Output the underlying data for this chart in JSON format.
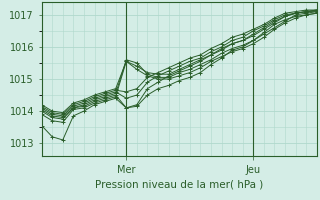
{
  "title": "Pression niveau de la mer( hPa )",
  "ylabel_ticks": [
    1013,
    1014,
    1015,
    1016,
    1017
  ],
  "ylim": [
    1012.6,
    1017.4
  ],
  "xlim": [
    0,
    52
  ],
  "x_day_labels": [
    [
      "Mer",
      16
    ],
    [
      "Jeu",
      40
    ]
  ],
  "background_color": "#d4ede6",
  "grid_color": "#b0d8cc",
  "line_color": "#2a5e2a",
  "marker_color": "#2a5e2a",
  "series": [
    [
      0,
      1013.55,
      2,
      1013.2,
      4,
      1013.1,
      6,
      1013.85,
      8,
      1014.0,
      10,
      1014.2,
      12,
      1014.3,
      14,
      1014.4,
      16,
      1014.1,
      18,
      1014.15,
      20,
      1014.5,
      22,
      1014.7,
      24,
      1014.8,
      26,
      1014.95,
      28,
      1015.05,
      30,
      1015.2,
      32,
      1015.45,
      34,
      1015.65,
      36,
      1015.9,
      38,
      1016.0,
      40,
      1016.2,
      42,
      1016.45,
      44,
      1016.7,
      46,
      1016.85,
      48,
      1016.95,
      50,
      1017.0,
      52,
      1017.05
    ],
    [
      0,
      1013.9,
      2,
      1013.7,
      4,
      1013.65,
      6,
      1014.05,
      8,
      1014.1,
      10,
      1014.25,
      12,
      1014.35,
      14,
      1014.45,
      16,
      1015.55,
      18,
      1015.3,
      20,
      1015.1,
      22,
      1015.0,
      24,
      1015.0,
      26,
      1015.1,
      28,
      1015.2,
      30,
      1015.35,
      32,
      1015.55,
      34,
      1015.7,
      36,
      1015.85,
      38,
      1015.95,
      40,
      1016.1,
      42,
      1016.3,
      44,
      1016.55,
      46,
      1016.75,
      48,
      1016.9,
      50,
      1017.0,
      52,
      1017.05
    ],
    [
      0,
      1014.0,
      2,
      1013.8,
      4,
      1013.75,
      6,
      1014.1,
      8,
      1014.15,
      10,
      1014.3,
      12,
      1014.4,
      14,
      1014.5,
      16,
      1014.1,
      18,
      1014.2,
      20,
      1014.7,
      22,
      1014.9,
      24,
      1015.1,
      26,
      1015.25,
      28,
      1015.4,
      30,
      1015.55,
      32,
      1015.75,
      34,
      1015.9,
      36,
      1016.1,
      38,
      1016.2,
      40,
      1016.4,
      42,
      1016.6,
      44,
      1016.8,
      46,
      1016.95,
      48,
      1017.05,
      50,
      1017.1,
      52,
      1017.1
    ],
    [
      0,
      1014.05,
      2,
      1013.85,
      4,
      1013.8,
      6,
      1014.1,
      8,
      1014.2,
      10,
      1014.35,
      12,
      1014.45,
      14,
      1014.55,
      16,
      1015.6,
      18,
      1015.5,
      20,
      1015.15,
      22,
      1015.05,
      24,
      1015.05,
      26,
      1015.2,
      28,
      1015.3,
      30,
      1015.45,
      32,
      1015.6,
      34,
      1015.8,
      36,
      1015.95,
      38,
      1016.05,
      40,
      1016.2,
      42,
      1016.4,
      44,
      1016.6,
      46,
      1016.8,
      48,
      1017.0,
      50,
      1017.05,
      52,
      1017.1
    ],
    [
      0,
      1014.1,
      2,
      1013.9,
      4,
      1013.85,
      6,
      1014.15,
      8,
      1014.25,
      10,
      1014.4,
      12,
      1014.5,
      14,
      1014.6,
      16,
      1014.4,
      18,
      1014.5,
      20,
      1014.9,
      22,
      1015.1,
      24,
      1015.25,
      26,
      1015.4,
      28,
      1015.55,
      30,
      1015.65,
      32,
      1015.85,
      34,
      1016.0,
      36,
      1016.2,
      38,
      1016.3,
      40,
      1016.5,
      42,
      1016.65,
      44,
      1016.85,
      46,
      1017.0,
      48,
      1017.05,
      50,
      1017.1,
      52,
      1017.15
    ],
    [
      0,
      1014.15,
      2,
      1013.95,
      4,
      1013.9,
      6,
      1014.2,
      8,
      1014.3,
      10,
      1014.45,
      12,
      1014.55,
      14,
      1014.65,
      16,
      1014.6,
      18,
      1014.7,
      20,
      1015.05,
      22,
      1015.2,
      24,
      1015.35,
      26,
      1015.5,
      28,
      1015.65,
      30,
      1015.75,
      32,
      1015.95,
      34,
      1016.1,
      36,
      1016.3,
      38,
      1016.4,
      40,
      1016.55,
      42,
      1016.7,
      44,
      1016.9,
      46,
      1017.05,
      48,
      1017.1,
      50,
      1017.15,
      52,
      1017.15
    ],
    [
      0,
      1014.2,
      2,
      1014.0,
      4,
      1013.95,
      6,
      1014.25,
      8,
      1014.35,
      10,
      1014.5,
      12,
      1014.6,
      14,
      1014.7,
      16,
      1015.55,
      18,
      1015.4,
      20,
      1015.2,
      22,
      1015.15,
      24,
      1015.15,
      26,
      1015.3,
      28,
      1015.45,
      30,
      1015.6,
      32,
      1015.75,
      34,
      1015.95,
      36,
      1016.1,
      38,
      1016.2,
      40,
      1016.35,
      42,
      1016.55,
      44,
      1016.75,
      46,
      1016.95,
      48,
      1017.05,
      50,
      1017.1,
      52,
      1017.15
    ]
  ]
}
